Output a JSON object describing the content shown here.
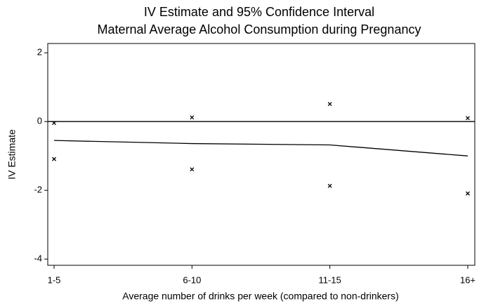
{
  "chart_data": {
    "type": "line",
    "title": "IV Estimate and 95% Confidence Interval",
    "subtitle": "Maternal Average Alcohol Consumption during Pregnancy",
    "x_label": "Average number of drinks per week (compared to non-drinkers)",
    "y_label": "IV Estimate",
    "categories": [
      "1-5",
      "6-10",
      "11-15",
      "16+"
    ],
    "series": [
      {
        "style": "line",
        "color": "#000000",
        "values": [
          -0.55,
          -0.64,
          -0.68,
          -1.0
        ]
      },
      {
        "style": "marker",
        "color": "#000000",
        "values": [
          -0.04,
          0.12,
          0.51,
          0.1
        ]
      },
      {
        "style": "marker",
        "color": "#000000",
        "values": [
          -1.09,
          -1.39,
          -1.87,
          -2.09
        ]
      }
    ],
    "reference_line": 0,
    "ylim": [
      -4.18,
      2.27
    ],
    "yticks": [
      -4,
      -2,
      0,
      2
    ],
    "grid": false
  }
}
